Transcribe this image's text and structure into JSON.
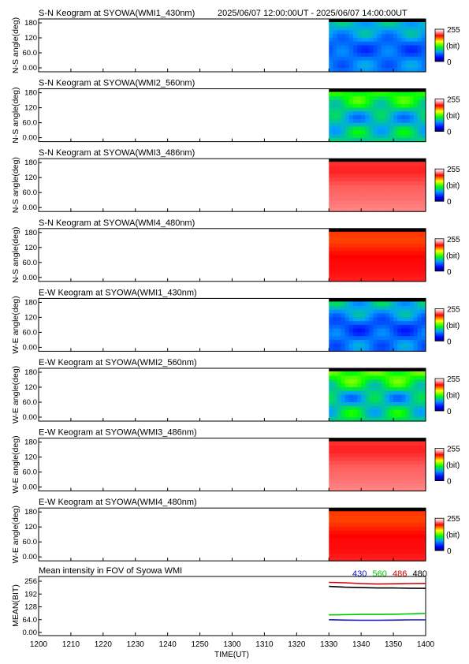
{
  "chart_data": {
    "type": "heatmap",
    "header": {
      "time_range": "2025/06/07 12:00:00UT - 2025/06/07 14:00:00UT"
    },
    "x": {
      "label": "TIME(UT)",
      "ticks": [
        "1200",
        "1210",
        "1220",
        "1230",
        "1240",
        "1250",
        "1300",
        "1310",
        "1320",
        "1330",
        "1340",
        "1350",
        "1400"
      ],
      "range_minutes": [
        0,
        120
      ],
      "data_start_minute": 90
    },
    "colorbar": {
      "max_label": "255",
      "unit_label": "(bit)",
      "min_label": "0"
    },
    "keograms": [
      {
        "title": "S-N Keogram at SYOWA(WMI1_430nm)",
        "ylabel": "N-S angle(deg)",
        "yticks": [
          "180",
          "120",
          "60.0",
          "0.00"
        ],
        "level": 0.3,
        "structure": 0.06
      },
      {
        "title": "S-N Keogram at SYOWA(WMI2_560nm)",
        "ylabel": "N-S angle(deg)",
        "yticks": [
          "180",
          "120",
          "60.0",
          "0.00"
        ],
        "level": 0.42,
        "structure": 0.08
      },
      {
        "title": "S-N Keogram at SYOWA(WMI3_486nm)",
        "ylabel": "N-S angle(deg)",
        "yticks": [
          "180",
          "120",
          "60.0",
          "0.00"
        ],
        "level": 0.95,
        "structure": 0.05
      },
      {
        "title": "S-N Keogram at SYOWA(WMI4_480nm)",
        "ylabel": "N-S angle(deg)",
        "yticks": [
          "180",
          "120",
          "60.0",
          "0.00"
        ],
        "level": 0.88,
        "structure": 0.08
      },
      {
        "title": "E-W Keogram at SYOWA(WMI1_430nm)",
        "ylabel": "W-E angle(deg)",
        "yticks": [
          "180",
          "120",
          "60.0",
          "0.00"
        ],
        "level": 0.3,
        "structure": 0.07
      },
      {
        "title": "E-W Keogram at SYOWA(WMI2_560nm)",
        "ylabel": "W-E angle(deg)",
        "yticks": [
          "180",
          "120",
          "60.0",
          "0.00"
        ],
        "level": 0.44,
        "structure": 0.09
      },
      {
        "title": "E-W Keogram at SYOWA(WMI3_486nm)",
        "ylabel": "W-E angle(deg)",
        "yticks": [
          "180",
          "120",
          "60.0",
          "0.00"
        ],
        "level": 0.95,
        "structure": 0.05
      },
      {
        "title": "E-W Keogram at SYOWA(WMI4_480nm)",
        "ylabel": "W-E angle(deg)",
        "yticks": [
          "180",
          "120",
          "60.0",
          "0.00"
        ],
        "level": 0.88,
        "structure": 0.08
      }
    ],
    "mean_panel": {
      "title": "Mean intensity in FOV of Syowa WMI",
      "ylabel": "MEAN(BIT)",
      "yticks": [
        "256",
        "192",
        "128",
        "64.0",
        "0.00"
      ],
      "ylim": [
        0,
        256
      ],
      "legend": [
        {
          "name": "430",
          "color": "#1010d0"
        },
        {
          "name": "560",
          "color": "#00cc00"
        },
        {
          "name": "486",
          "color": "#dd0000"
        },
        {
          "name": "480",
          "color": "#000000"
        }
      ],
      "series": [
        {
          "name": "486",
          "color": "#dd0000",
          "x": [
            90,
            95,
            100,
            105,
            110,
            115,
            120
          ],
          "values": [
            250,
            248,
            244,
            242,
            243,
            244,
            245
          ]
        },
        {
          "name": "480",
          "color": "#000000",
          "x": [
            90,
            95,
            100,
            105,
            110,
            115,
            120
          ],
          "values": [
            230,
            226,
            224,
            222,
            222,
            221,
            220
          ]
        },
        {
          "name": "560",
          "color": "#00cc00",
          "x": [
            90,
            95,
            100,
            105,
            110,
            115,
            120
          ],
          "values": [
            88,
            89,
            90,
            90,
            91,
            93,
            95
          ]
        },
        {
          "name": "430",
          "color": "#1010d0",
          "x": [
            90,
            95,
            100,
            105,
            110,
            115,
            120
          ],
          "values": [
            64,
            62,
            61,
            61,
            62,
            63,
            63
          ]
        }
      ]
    }
  }
}
